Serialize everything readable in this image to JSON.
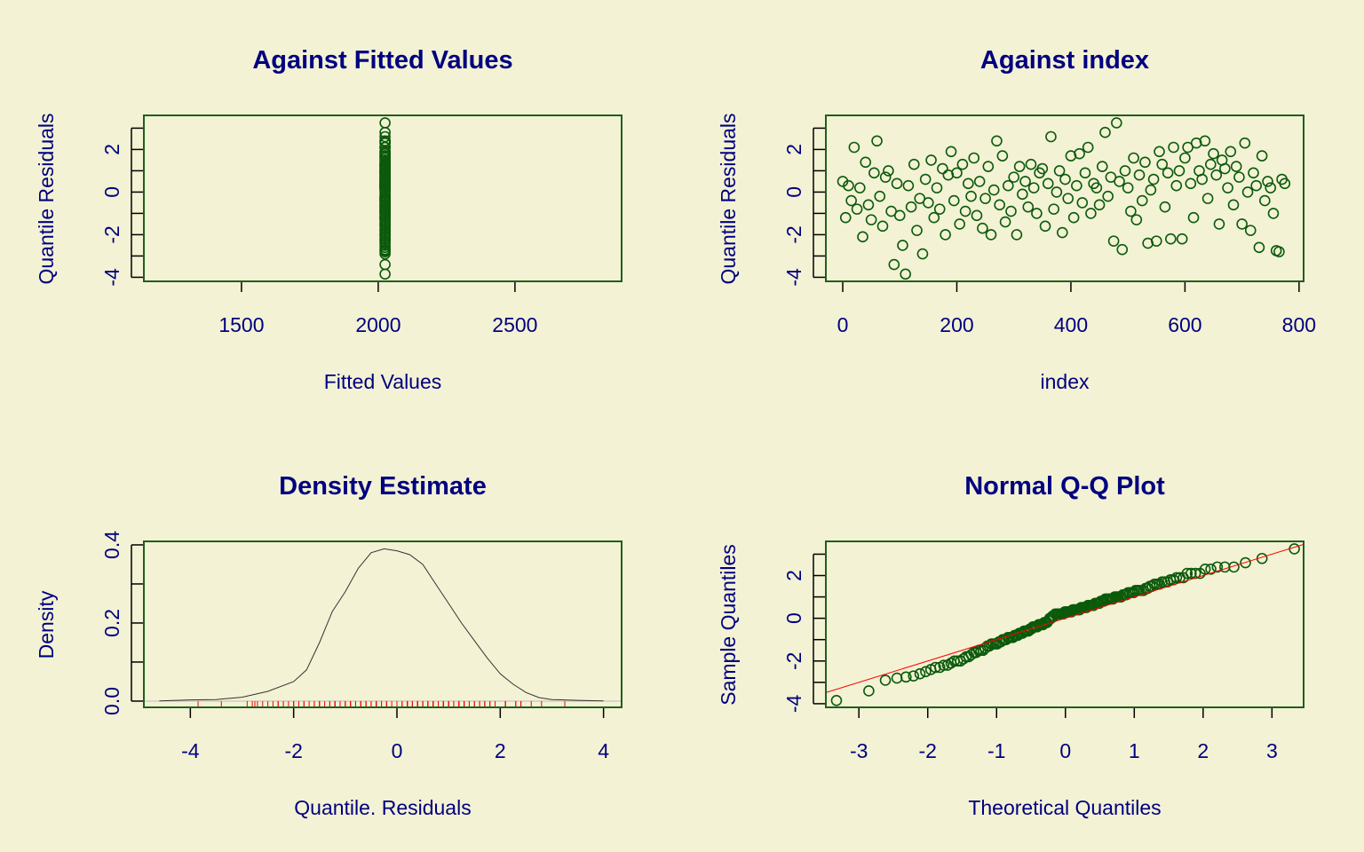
{
  "colors": {
    "background": "#f3f2d4",
    "text": "#000080",
    "points": "#0b5a0b",
    "box": "#1f5f1f",
    "rug": "#ff0000",
    "qqline": "#ff0000",
    "density": "#333333"
  },
  "chart_data": [
    {
      "type": "scatter",
      "title": "Against Fitted Values",
      "xlabel": "Fitted Values",
      "ylabel": "Quantile Residuals",
      "xlim": [
        1143,
        2890
      ],
      "ylim": [
        -4.19,
        3.6
      ],
      "xticks": [
        1500,
        2000,
        2500
      ],
      "yticks": [
        -4,
        -2,
        0,
        2
      ],
      "yminor": [
        -3,
        -1,
        1,
        3
      ],
      "fitted_value": 2025
    },
    {
      "type": "scatter",
      "title": "Against  index",
      "xlabel": "index",
      "ylabel": "Quantile Residuals",
      "xlim": [
        -29.6,
        808
      ],
      "ylim": [
        -4.19,
        3.6
      ],
      "xticks": [
        0,
        200,
        400,
        600,
        800
      ],
      "yticks": [
        -4,
        -2,
        0,
        2
      ],
      "yminor": [
        -3,
        -1,
        1,
        3
      ],
      "index_step": 5
    },
    {
      "type": "line",
      "title": "Density Estimate",
      "xlabel": "Quantile. Residuals",
      "ylabel": "Density",
      "xlim": [
        -4.9,
        4.35
      ],
      "ylim": [
        -0.016,
        0.409
      ],
      "xticks": [
        -4,
        -2,
        0,
        2,
        4
      ],
      "yticks": [
        0.0,
        0.2,
        0.4
      ],
      "ytick_labels": [
        "0.0",
        "0.2",
        "0.4"
      ],
      "yminor": [
        0.1,
        0.3
      ],
      "x": [
        -4.6,
        -4,
        -3.5,
        -3,
        -2.5,
        -2,
        -1.75,
        -1.5,
        -1.25,
        -1,
        -0.75,
        -0.5,
        -0.25,
        0,
        0.25,
        0.5,
        0.75,
        1,
        1.25,
        1.5,
        1.75,
        2,
        2.25,
        2.5,
        2.75,
        3,
        3.5,
        4
      ],
      "y": [
        0.0005,
        0.003,
        0.004,
        0.01,
        0.025,
        0.05,
        0.08,
        0.15,
        0.23,
        0.28,
        0.34,
        0.38,
        0.39,
        0.385,
        0.375,
        0.35,
        0.3,
        0.25,
        0.2,
        0.155,
        0.11,
        0.07,
        0.043,
        0.022,
        0.009,
        0.004,
        0.002,
        0.0005
      ]
    },
    {
      "type": "scatter",
      "title": "Normal Q-Q Plot",
      "xlabel": "Theoretical Quantiles",
      "ylabel": "Sample Quantiles",
      "xlim": [
        -3.48,
        3.46
      ],
      "ylim": [
        -4.17,
        3.6
      ],
      "xticks": [
        -3,
        -2,
        -1,
        0,
        1,
        2,
        3
      ],
      "yticks": [
        -4,
        -2,
        0,
        2
      ],
      "yminor": [
        -3,
        -1,
        1,
        3
      ],
      "qq_line": {
        "intercept": 0,
        "slope": 1
      }
    }
  ],
  "residuals": [
    0.5,
    -1.2,
    0.3,
    -0.4,
    2.1,
    -0.8,
    0.2,
    -2.1,
    1.4,
    -0.6,
    -1.3,
    0.9,
    2.4,
    -0.2,
    -1.6,
    0.7,
    1.0,
    -0.9,
    -3.4,
    0.4,
    -1.1,
    -2.5,
    -3.85,
    0.3,
    -0.7,
    1.3,
    -1.8,
    -0.3,
    -2.9,
    0.6,
    -0.5,
    1.5,
    -1.2,
    0.2,
    -0.8,
    1.1,
    -2.0,
    0.8,
    1.9,
    -0.4,
    0.9,
    -1.5,
    1.3,
    -0.9,
    0.4,
    -0.2,
    1.6,
    -1.1,
    0.5,
    -1.7,
    -0.3,
    1.2,
    -2.0,
    0.1,
    2.4,
    -0.6,
    1.7,
    -1.4,
    0.3,
    -0.9,
    0.7,
    -2.0,
    1.2,
    -0.1,
    0.5,
    -0.7,
    1.3,
    0.2,
    -1.0,
    0.9,
    1.1,
    -1.6,
    0.4,
    2.6,
    -0.8,
    0.0,
    1.0,
    -1.9,
    0.6,
    -0.3,
    1.7,
    -1.2,
    0.3,
    1.8,
    -0.5,
    0.9,
    2.1,
    -1.0,
    0.4,
    0.2,
    -0.6,
    1.2,
    2.8,
    -0.2,
    0.7,
    -2.3,
    3.25,
    0.5,
    -2.7,
    1.0,
    0.2,
    -0.9,
    1.6,
    -1.3,
    0.8,
    -0.4,
    1.4,
    -2.4,
    0.1,
    0.6,
    -2.3,
    1.9,
    1.3,
    -0.7,
    0.9,
    -2.2,
    2.1,
    0.3,
    1.0,
    -2.2,
    1.6,
    2.1,
    0.4,
    -1.2,
    2.3,
    1.0,
    0.6,
    2.4,
    -0.3,
    1.3,
    1.8,
    0.8,
    -1.5,
    1.5,
    1.1,
    0.2,
    1.9,
    -0.6,
    1.2,
    0.7,
    -1.5,
    2.3,
    0.0,
    -1.8,
    0.9,
    0.3,
    -2.6,
    1.7,
    -0.4,
    0.5,
    0.2,
    -1.0,
    -2.75,
    -2.8,
    0.6,
    0.4
  ]
}
